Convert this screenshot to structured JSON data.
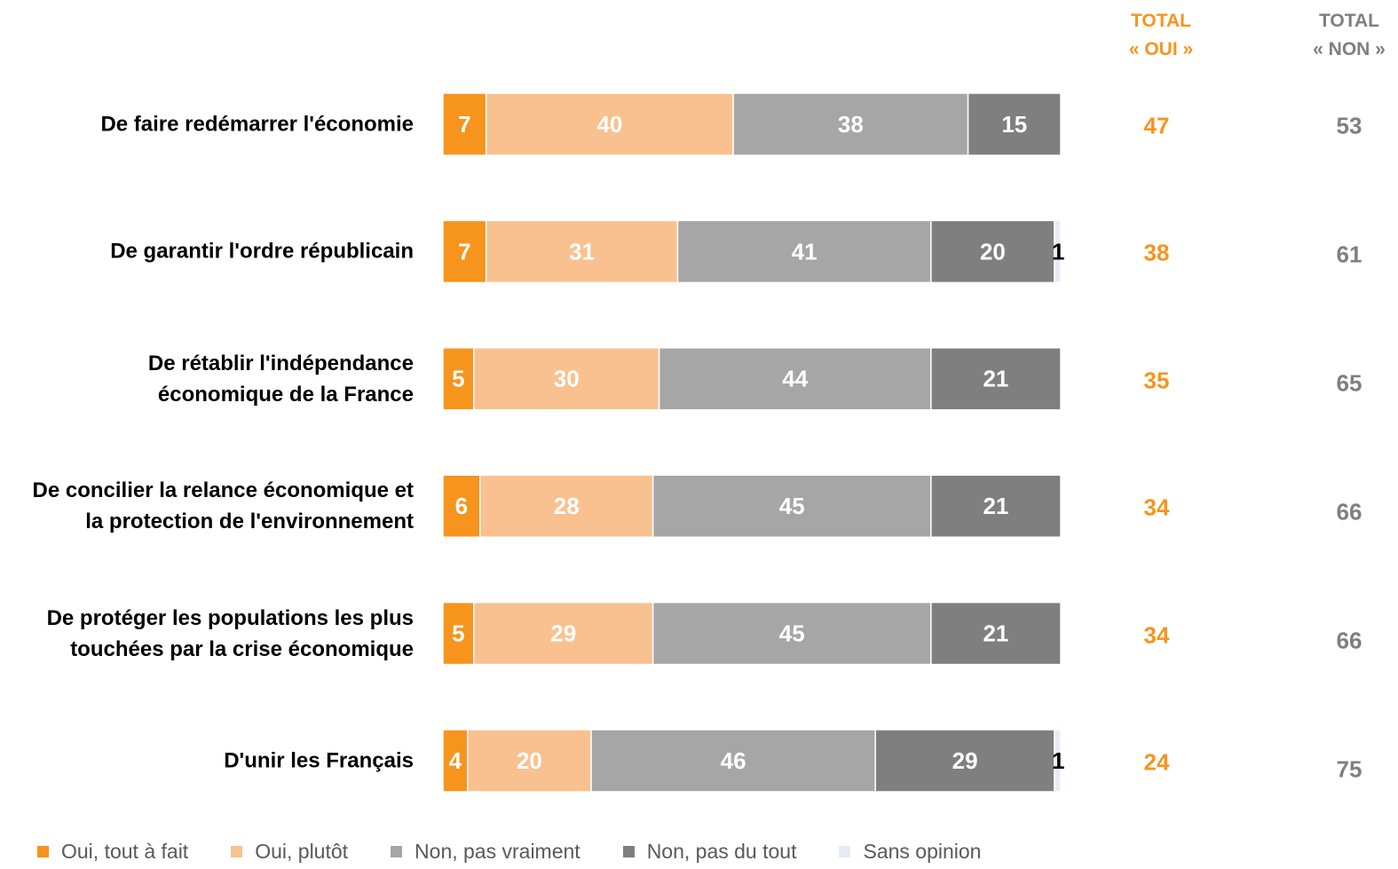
{
  "chart_data": {
    "type": "bar",
    "orientation": "horizontal",
    "stacked": true,
    "categories": [
      "De faire redémarrer l'économie",
      "De garantir l'ordre républicain",
      "De rétablir l'indépendance\néconomique de la France",
      "De concilier la relance économique et\nla protection de l'environnement",
      "De protéger les populations les plus\ntouchées par la crise économique",
      "D'unir les Français"
    ],
    "series": [
      {
        "name": "Oui, tout à fait",
        "color": "#f7941d",
        "label_color": "#ffffff",
        "values": [
          7,
          7,
          5,
          6,
          5,
          4
        ]
      },
      {
        "name": "Oui, plutôt",
        "color": "#f9c18f",
        "label_color": "#ffffff",
        "values": [
          40,
          31,
          30,
          28,
          29,
          20
        ]
      },
      {
        "name": "Non, pas vraiment",
        "color": "#a6a6a6",
        "label_color": "#ffffff",
        "values": [
          38,
          41,
          44,
          45,
          45,
          46
        ]
      },
      {
        "name": "Non, pas du tout",
        "color": "#7f7f7f",
        "label_color": "#ffffff",
        "values": [
          15,
          20,
          21,
          21,
          21,
          29
        ]
      },
      {
        "name": "Sans opinion",
        "color": "#e6ebf4",
        "label_color": "#000000",
        "values": [
          null,
          1,
          null,
          null,
          null,
          1
        ]
      }
    ],
    "totals": [
      {
        "header": "TOTAL\n« OUI »",
        "color": "#f7941d",
        "values": [
          47,
          38,
          35,
          34,
          34,
          24
        ]
      },
      {
        "header": "TOTAL\n« NON »",
        "color": "#7f7f7f",
        "values": [
          53,
          61,
          65,
          66,
          66,
          75
        ]
      }
    ]
  }
}
